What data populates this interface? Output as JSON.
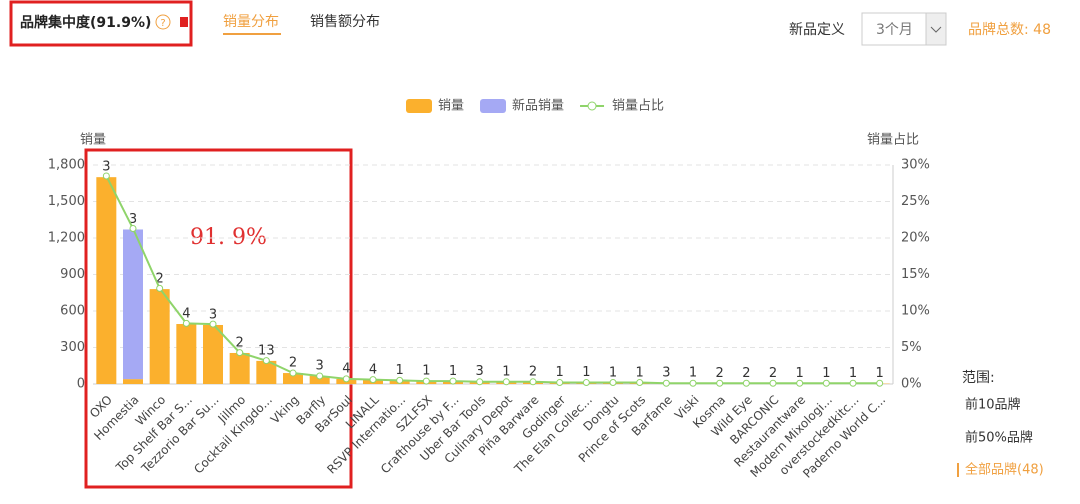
{
  "header": {
    "title": "品牌集中度(91.9%)",
    "help": "?",
    "tabs": [
      "销量分布",
      "销售额分布"
    ],
    "new_label": "新品定义",
    "period": "3个月",
    "brand_total": "品牌总数: 48"
  },
  "range": {
    "title": "范围:",
    "options": [
      "前10品牌",
      "前50%品牌",
      "全部品牌(48)"
    ]
  },
  "chart_data": {
    "type": "bar",
    "stacked": true,
    "ylabel": "销量",
    "y2label": "销量占比",
    "annotation": "91. 9%",
    "categories": [
      "OXO",
      "Homestia",
      "Winco",
      "Top Shelf Bar S...",
      "Tezzorio Bar Su...",
      "Jillmo",
      "Cocktail Kingdo...",
      "Vking",
      "Barfly",
      "BarSoul",
      "LINALL",
      "RSVP Internatio...",
      "SZLFSX",
      "Crafthouse by F...",
      "Uber Bar Tools",
      "Culinary Depot",
      "Piña Barware",
      "Godinger",
      "The Elan Collec...",
      "Dongtu",
      "Prince of Scots",
      "Barfame",
      "Viski",
      "Kosma",
      "Wild Eye",
      "BARCONIC",
      "Restaurantware",
      "Modern Mixologi...",
      "overstockedkitc...",
      "Paderno World C..."
    ],
    "series": [
      {
        "name": "销量",
        "color": "#fbb02d",
        "values": [
          1700,
          40,
          780,
          493,
          485,
          255,
          190,
          90,
          66,
          41,
          33,
          30,
          25,
          22,
          20,
          18,
          16,
          14,
          12,
          10,
          9,
          8,
          7,
          6,
          5,
          5,
          4,
          4,
          3,
          3
        ]
      },
      {
        "name": "新品销量",
        "color": "#a5a9f4",
        "values": [
          0,
          1230,
          0,
          0,
          0,
          0,
          0,
          0,
          0,
          0,
          0,
          0,
          0,
          0,
          0,
          0,
          0,
          0,
          0,
          0,
          0,
          0,
          0,
          0,
          0,
          0,
          0,
          0,
          0,
          0
        ]
      },
      {
        "name": "销量占比",
        "color": "#8fd46a",
        "type": "line",
        "axis": "y2",
        "values": [
          28.5,
          21.3,
          13.1,
          8.3,
          8.2,
          4.3,
          3.2,
          1.5,
          1.1,
          0.7,
          0.6,
          0.5,
          0.4,
          0.4,
          0.3,
          0.3,
          0.3,
          0.2,
          0.2,
          0.2,
          0.2,
          0.1,
          0.1,
          0.1,
          0.1,
          0.1,
          0.1,
          0.1,
          0.1,
          0.1
        ]
      }
    ],
    "top_labels": [
      3,
      3,
      2,
      4,
      3,
      2,
      13,
      2,
      3,
      4,
      4,
      1,
      1,
      1,
      3,
      1,
      2,
      1,
      1,
      1,
      1,
      3,
      1,
      2,
      2,
      2,
      1,
      1,
      1,
      1
    ],
    "ylim": [
      0,
      1800
    ],
    "yticks": [
      0,
      300,
      600,
      900,
      {
        "value": 1200,
        "label": "1,200"
      },
      {
        "value": 1500,
        "label": "1,500"
      },
      {
        "value": 1800,
        "label": "1,800"
      }
    ],
    "y2lim": [
      0,
      30
    ],
    "y2ticks": [
      {
        "value": 0,
        "label": "0%"
      },
      {
        "value": 5,
        "label": "5%"
      },
      {
        "value": 10,
        "label": "10%"
      },
      {
        "value": 15,
        "label": "15%"
      },
      {
        "value": 20,
        "label": "20%"
      },
      {
        "value": 25,
        "label": "25%"
      },
      {
        "value": 30,
        "label": "30%"
      }
    ],
    "grid": true
  }
}
